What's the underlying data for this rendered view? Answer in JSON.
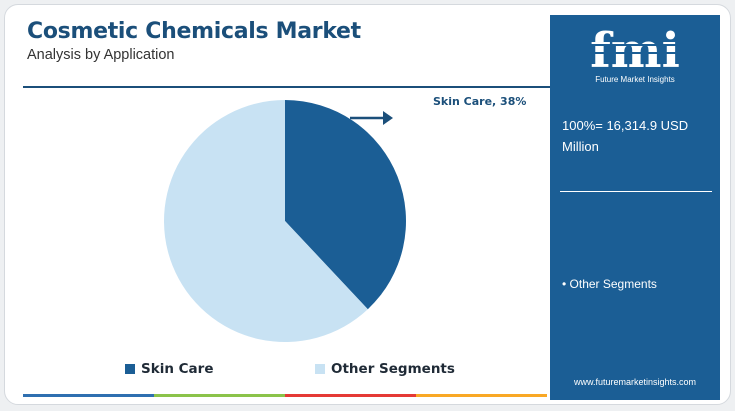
{
  "header": {
    "title": "Cosmetic Chemicals Market",
    "subtitle": "Analysis by Application"
  },
  "chart_data": {
    "type": "pie",
    "categories": [
      "Skin Care",
      "Other Segments"
    ],
    "values": [
      38,
      62
    ],
    "unit": "%",
    "colors": [
      "#1b5e95",
      "#c8e2f3"
    ],
    "annotations": [
      {
        "category": "Skin Care",
        "label": "Skin Care, 38%"
      }
    ],
    "legend_placement": "bottom"
  },
  "legend": {
    "items": [
      {
        "label": "Skin Care",
        "color": "#1b5e95"
      },
      {
        "label": "Other Segments",
        "color": "#c8e2f3"
      }
    ]
  },
  "side_panel": {
    "logo_letters": "fmi",
    "logo_caption": "Future Market Insights",
    "total_line": "100%= 16,314.9 USD Million",
    "bullet": "• Other Segments",
    "website": "www.futuremarketinsights.com"
  },
  "colors": {
    "brand": "#1b4f7a",
    "panel": "#1b5e95",
    "stripe": [
      "#2f6fb0",
      "#8bc34a",
      "#e53935",
      "#f9a825"
    ]
  }
}
